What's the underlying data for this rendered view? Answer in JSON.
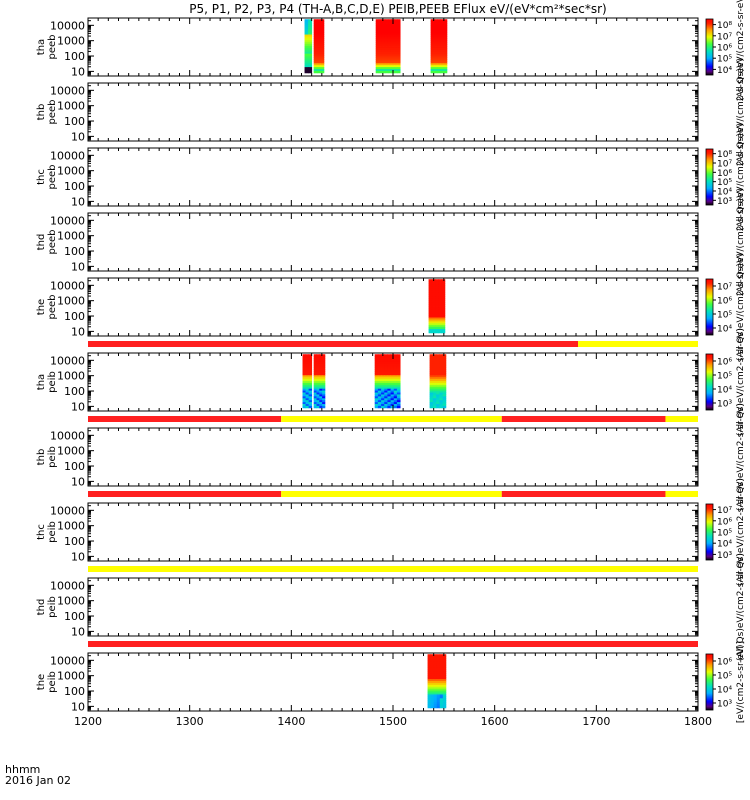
{
  "title": "P5, P1, P2, P3, P4 (TH-A,B,C,D,E) PEIB,PEEB EFlux eV/(eV*cm²*sec*sr)",
  "footer": {
    "time_label": "hhmm",
    "date_label": "2016 Jan 02"
  },
  "colors": {
    "flag_red": "#ff2020",
    "flag_yellow": "#ffff00"
  },
  "chart_data": {
    "type": "heatmap",
    "x_tick_labels": [
      "1200",
      "1300",
      "1400",
      "1500",
      "1600",
      "1700",
      "1800"
    ],
    "x_ticks": [
      1200,
      1300,
      1400,
      1500,
      1600,
      1700,
      1800
    ],
    "xlim": [
      1200,
      1800
    ],
    "y_scale": "log",
    "ylim": [
      5,
      30000
    ],
    "y_ticks": [
      10,
      100,
      1000,
      10000
    ],
    "y_tick_labels": [
      "10",
      "100",
      "1000",
      "10000"
    ],
    "panels": [
      {
        "ylabel": [
          "tha",
          "peeb"
        ],
        "colorbar": {
          "label": "(All Qs)eV/(cm2-s-sr-eV)",
          "ticks": [
            "10⁴",
            "10⁵",
            "10⁶",
            "10⁷",
            "10⁸"
          ],
          "exp_range": [
            3.5,
            8
          ]
        },
        "blocks": [
          {
            "start": 1413,
            "end": 1420,
            "ymin": 8,
            "ymax": 25000,
            "profile": "tha_a"
          },
          {
            "start": 1422,
            "end": 1432,
            "ymin": 8,
            "ymax": 25000,
            "profile": "hot"
          },
          {
            "start": 1483,
            "end": 1507,
            "ymin": 8,
            "ymax": 25000,
            "profile": "hot"
          },
          {
            "start": 1537,
            "end": 1553,
            "ymin": 8,
            "ymax": 25000,
            "profile": "hot"
          }
        ]
      },
      {
        "ylabel": [
          "thb",
          "peeb"
        ],
        "colorbar": {
          "label": "(All Qs)eV/(cm2-s-sr-eV)",
          "ticks": [],
          "exp_range": [
            3.5,
            8
          ]
        },
        "blocks": []
      },
      {
        "ylabel": [
          "thc",
          "peeb"
        ],
        "colorbar": {
          "label": "(All Qs)eV/(cm2-s-sr-eV)",
          "ticks": [
            "10³",
            "10⁴",
            "10⁵",
            "10⁶",
            "10⁷",
            "10⁸"
          ],
          "exp_range": [
            3,
            8
          ]
        },
        "blocks": []
      },
      {
        "ylabel": [
          "thd",
          "peeb"
        ],
        "colorbar": {
          "label": "(All Qs)eV/(cm2-s-sr-eV)",
          "ticks": [],
          "exp_range": [
            3,
            8
          ]
        },
        "blocks": []
      },
      {
        "ylabel": [
          "the",
          "peeb"
        ],
        "colorbar": {
          "label": "(All Qs)eV/(cm2-s-sr-eV)",
          "ticks": [
            "10⁴",
            "10⁵",
            "10⁶",
            "10⁷"
          ],
          "exp_range": [
            3.5,
            7.5
          ]
        },
        "blocks": [
          {
            "start": 1535,
            "end": 1551,
            "ymin": 8,
            "ymax": 25000,
            "profile": "the_e"
          }
        ]
      },
      {
        "ylabel": [
          "tha",
          "peib"
        ],
        "colorbar": {
          "label": "(All Qs)eV/(cm2-s-sr-eV)",
          "ticks": [
            "10³",
            "10⁴",
            "10⁵",
            "10⁶"
          ],
          "exp_range": [
            2.5,
            6.5
          ]
        },
        "blocks": [
          {
            "start": 1411,
            "end": 1420,
            "ymin": 8,
            "ymax": 25000,
            "profile": "ion"
          },
          {
            "start": 1422,
            "end": 1433,
            "ymin": 8,
            "ymax": 25000,
            "profile": "ion"
          },
          {
            "start": 1482,
            "end": 1507,
            "ymin": 8,
            "ymax": 25000,
            "profile": "ion"
          },
          {
            "start": 1536,
            "end": 1552,
            "ymin": 8,
            "ymax": 25000,
            "profile": "ion_e"
          }
        ]
      },
      {
        "ylabel": [
          "thb",
          "peib"
        ],
        "colorbar": {
          "label": "(All Qs)eV/(cm2-s-sr-eV)",
          "ticks": [],
          "exp_range": [
            3,
            7
          ]
        },
        "blocks": []
      },
      {
        "ylabel": [
          "thc",
          "peib"
        ],
        "colorbar": {
          "label": "(All Qs)eV/(cm2-s-sr-eV)",
          "ticks": [
            "10³",
            "10⁴",
            "10⁵",
            "10⁶",
            "10⁷"
          ],
          "exp_range": [
            2.5,
            7.5
          ]
        },
        "blocks": []
      },
      {
        "ylabel": [
          "thd",
          "peib"
        ],
        "colorbar": {
          "label": "(All Qs)eV/(cm2-s-sr-eV)",
          "ticks": [],
          "exp_range": [
            3,
            7
          ]
        },
        "blocks": []
      },
      {
        "ylabel": [
          "the",
          "peib"
        ],
        "colorbar": {
          "label": "[eV/(cm2-s-sr-eV)]",
          "ticks": [
            "10³",
            "10⁴",
            "10⁵",
            "10⁶"
          ],
          "exp_range": [
            2.5,
            6.5
          ]
        },
        "blocks": [
          {
            "start": 1534,
            "end": 1552,
            "ymin": 8,
            "ymax": 25000,
            "profile": "ion_e2"
          }
        ]
      }
    ],
    "flag_bars": [
      {
        "after_panel": 4,
        "segments": [
          {
            "start": 1200,
            "end": 1682,
            "color": "red"
          },
          {
            "start": 1682,
            "end": 1800,
            "color": "yellow"
          }
        ]
      },
      {
        "after_panel": 5,
        "segments": [
          {
            "start": 1200,
            "end": 1390,
            "color": "red"
          },
          {
            "start": 1390,
            "end": 1607,
            "color": "yellow"
          },
          {
            "start": 1607,
            "end": 1768,
            "color": "red"
          },
          {
            "start": 1768,
            "end": 1800,
            "color": "yellow"
          }
        ]
      },
      {
        "after_panel": 6,
        "segments": [
          {
            "start": 1200,
            "end": 1390,
            "color": "red"
          },
          {
            "start": 1390,
            "end": 1607,
            "color": "yellow"
          },
          {
            "start": 1607,
            "end": 1768,
            "color": "red"
          },
          {
            "start": 1768,
            "end": 1800,
            "color": "yellow"
          }
        ]
      },
      {
        "after_panel": 7,
        "segments": [
          {
            "start": 1200,
            "end": 1800,
            "color": "yellow"
          }
        ]
      },
      {
        "after_panel": 8,
        "segments": [
          {
            "start": 1200,
            "end": 1800,
            "color": "red"
          }
        ]
      }
    ]
  }
}
